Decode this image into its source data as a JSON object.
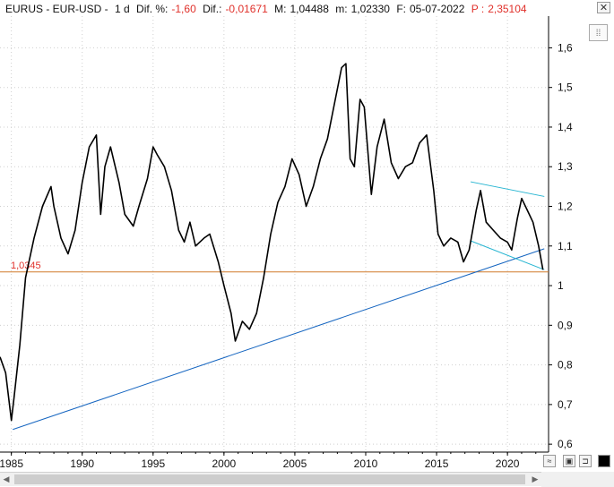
{
  "header": {
    "symbol": "EURUS - EUR-USD -",
    "interval": "1 d",
    "dif_pct_label": "Dif. %:",
    "dif_pct_value": "-1,60",
    "dif_label": "Dif.:",
    "dif_value": "-0,01671",
    "max_label": "M:",
    "max_value": "1,04488",
    "min_label": "m:",
    "min_value": "1,02330",
    "date_label": "F:",
    "date_value": "05-07-2022",
    "price_label": "P :",
    "price_value": "2,35104",
    "close_label": "✕"
  },
  "toolbar": {
    "log_icon": "chart-scale-icon",
    "save_icon": "save-icon",
    "pin_icon": "pin-icon",
    "color_icon": "color-swatch-icon"
  },
  "colors": {
    "price_line": "#000000",
    "support_line": "#1565c0",
    "channel_line": "#26b5d1",
    "horizontal_line": "#d07a2a",
    "horizontal_label": "#e0302a",
    "grid": "#cfcfcf"
  },
  "chart_data": {
    "type": "line",
    "title": "",
    "xlabel": "",
    "ylabel": "",
    "x_ticks": [
      "1985",
      "1990",
      "1995",
      "2000",
      "2005",
      "2010",
      "2015",
      "2020"
    ],
    "y_ticks": [
      "0,6",
      "0,7",
      "0,8",
      "0,9",
      "1",
      "1,1",
      "1,2",
      "1,3",
      "1,4",
      "1,5",
      "1,6"
    ],
    "xlim": [
      1984.2,
      2022.9
    ],
    "ylim": [
      0.58,
      1.68
    ],
    "grid": true,
    "horizontal_line": {
      "value": 1.0345,
      "label": "1,0345"
    },
    "series": [
      {
        "x": [
          1984.2,
          1984.6,
          1985.0,
          1985.2,
          1985.6,
          1986.0,
          1986.6,
          1987.2,
          1987.8,
          1988.0,
          1988.5,
          1989.0,
          1989.5,
          1990.0,
          1990.5,
          1991.0,
          1991.3,
          1991.6,
          1992.0,
          1992.6,
          1993.0,
          1993.6,
          1994.0,
          1994.6,
          1995.0,
          1995.3,
          1995.8,
          1996.3,
          1996.8,
          1997.2,
          1997.6,
          1998.0,
          1998.6,
          1999.0,
          1999.6,
          2000.0,
          2000.5,
          2000.8,
          2001.3,
          2001.8,
          2002.3,
          2002.8,
          2003.3,
          2003.8,
          2004.3,
          2004.8,
          2005.3,
          2005.8,
          2006.3,
          2006.8,
          2007.3,
          2007.8,
          2008.3,
          2008.6,
          2008.9,
          2009.2,
          2009.6,
          2009.9,
          2010.4,
          2010.8,
          2011.3,
          2011.8,
          2012.3,
          2012.8,
          2013.3,
          2013.8,
          2014.3,
          2014.8,
          2015.1,
          2015.5,
          2016.0,
          2016.5,
          2016.9,
          2017.3,
          2017.8,
          2018.1,
          2018.5,
          2019.0,
          2019.5,
          2020.0,
          2020.3,
          2020.7,
          2021.0,
          2021.4,
          2021.8,
          2022.2,
          2022.5
        ],
        "values": [
          0.82,
          0.78,
          0.66,
          0.72,
          0.85,
          1.02,
          1.12,
          1.2,
          1.25,
          1.2,
          1.12,
          1.08,
          1.14,
          1.26,
          1.35,
          1.38,
          1.18,
          1.3,
          1.35,
          1.26,
          1.18,
          1.15,
          1.2,
          1.27,
          1.35,
          1.33,
          1.3,
          1.24,
          1.14,
          1.11,
          1.16,
          1.1,
          1.12,
          1.13,
          1.06,
          1.0,
          0.93,
          0.86,
          0.91,
          0.89,
          0.93,
          1.02,
          1.13,
          1.21,
          1.25,
          1.32,
          1.28,
          1.2,
          1.25,
          1.32,
          1.37,
          1.46,
          1.55,
          1.56,
          1.32,
          1.3,
          1.47,
          1.45,
          1.23,
          1.35,
          1.42,
          1.31,
          1.27,
          1.3,
          1.31,
          1.36,
          1.38,
          1.24,
          1.13,
          1.1,
          1.12,
          1.11,
          1.06,
          1.09,
          1.19,
          1.24,
          1.16,
          1.14,
          1.12,
          1.11,
          1.09,
          1.17,
          1.22,
          1.19,
          1.16,
          1.1,
          1.04
        ]
      }
    ],
    "trendlines": [
      {
        "kind": "support",
        "from": [
          1985.1,
          0.637
        ],
        "to": [
          2022.6,
          1.093
        ]
      },
      {
        "kind": "channel-upper",
        "from": [
          2017.4,
          1.262
        ],
        "to": [
          2022.6,
          1.225
        ]
      },
      {
        "kind": "channel-lower",
        "from": [
          2017.4,
          1.113
        ],
        "to": [
          2022.6,
          1.04
        ]
      }
    ]
  }
}
